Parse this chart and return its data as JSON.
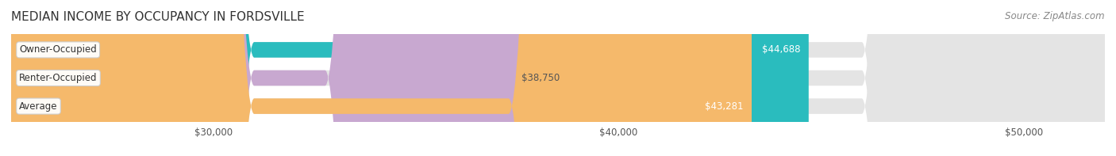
{
  "title": "MEDIAN INCOME BY OCCUPANCY IN FORDSVILLE",
  "source": "Source: ZipAtlas.com",
  "categories": [
    "Owner-Occupied",
    "Renter-Occupied",
    "Average"
  ],
  "values": [
    44688,
    38750,
    43281
  ],
  "bar_colors": [
    "#2abcbe",
    "#c8a8d0",
    "#f5b96b"
  ],
  "label_colors": [
    "#ffffff",
    "#555555",
    "#ffffff"
  ],
  "value_labels": [
    "$44,688",
    "$38,750",
    "$43,281"
  ],
  "xlim": [
    25000,
    52000
  ],
  "xticks": [
    30000,
    40000,
    50000
  ],
  "xtick_labels": [
    "$30,000",
    "$40,000",
    "$50,000"
  ],
  "bar_height": 0.55,
  "background_color": "#f0f0f0",
  "bar_bg_color": "#e8e8e8",
  "title_fontsize": 11,
  "source_fontsize": 8.5,
  "label_fontsize": 8.5,
  "value_fontsize": 8.5,
  "tick_fontsize": 8.5
}
